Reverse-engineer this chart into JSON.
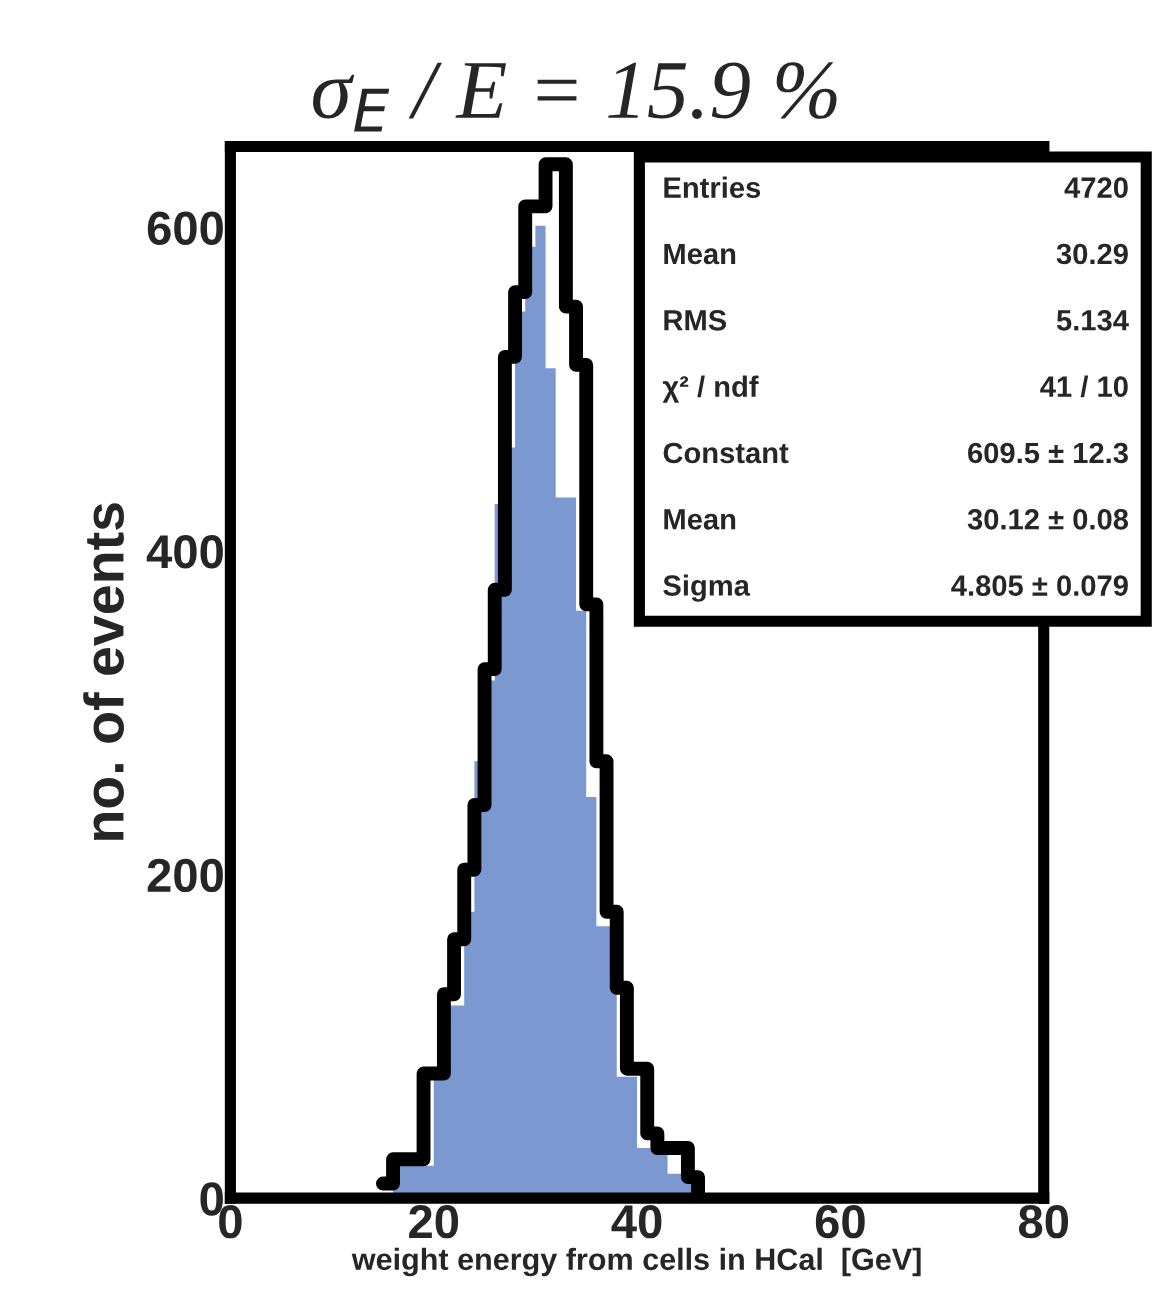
{
  "chart_data": {
    "type": "histogram",
    "title": "σ$_{E}$ / E = 15.9 %",
    "xlabel": "weight energy from cells in HCal  [GeV]",
    "ylabel": "no. of events",
    "bins": [
      15,
      16,
      17,
      18,
      19,
      20,
      21,
      22,
      23,
      24,
      25,
      26,
      27,
      28,
      29,
      30,
      31,
      32,
      33,
      34,
      35,
      36,
      37,
      38,
      39,
      40,
      41,
      42,
      43,
      44,
      45,
      46
    ],
    "series": [
      {
        "type": "histogram",
        "color": "#7b98d0",
        "values": [
          0,
          20,
          20,
          20,
          20,
          73,
          119,
          119,
          177,
          270,
          320,
          429,
          464,
          548,
          588,
          601,
          513,
          433,
          433,
          363,
          248,
          168,
          168,
          75,
          75,
          31,
          31,
          31,
          15,
          15,
          15
        ]
      },
      {
        "type": "step",
        "color": "#000000",
        "x": [
          15,
          16,
          17,
          18,
          19,
          20,
          21,
          22,
          23,
          24,
          25,
          26,
          27,
          28,
          29,
          30,
          31,
          32,
          33,
          34,
          35,
          36,
          37,
          38,
          39,
          40,
          41,
          42,
          43,
          44,
          45,
          46
        ],
        "values": [
          9,
          24,
          24,
          24,
          77,
          77,
          126,
          160,
          203,
          243,
          327,
          376,
          520,
          560,
          613,
          613,
          639,
          639,
          551,
          515,
          367,
          270,
          177,
          130,
          80,
          80,
          40,
          31,
          31,
          31,
          13,
          0
        ]
      }
    ],
    "xlim": [
      0,
      80
    ],
    "xticks": [
      0,
      20,
      40,
      60,
      80
    ],
    "ylim": [
      0,
      650
    ],
    "yticks": [
      0,
      200,
      400,
      600
    ],
    "grid": false,
    "legend": false,
    "annotations": [
      "Entries",
      "4720",
      "Mean",
      "30.29",
      "RMS",
      "5.134",
      "χ² / ndf",
      "41 / 10",
      "Constant",
      "609.5 ± 12.3",
      "Mean",
      "30.12 ± 0.08",
      "Sigma",
      "4.805 ± 0.079"
    ]
  }
}
